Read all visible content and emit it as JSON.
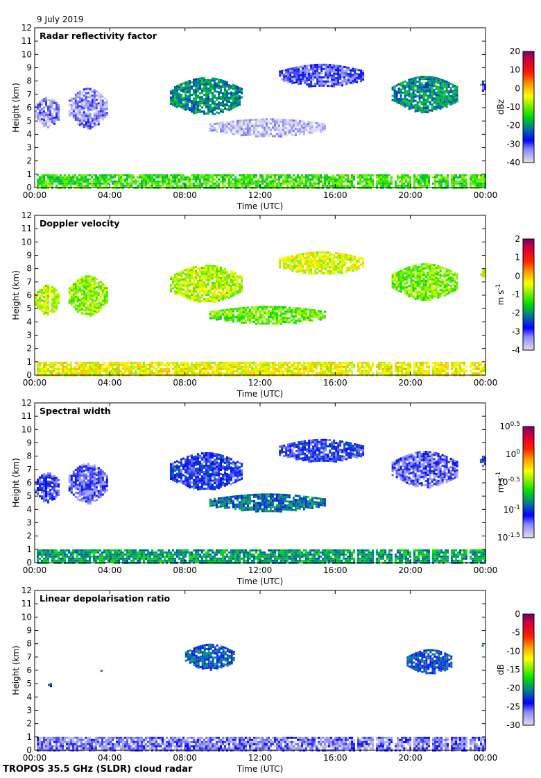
{
  "header": {
    "date": "9 July 2019"
  },
  "footer": {
    "instrument": "TROPOS 35.5 GHz (SLDR) cloud radar"
  },
  "chart_data": [
    {
      "type": "heatmap",
      "title": "Radar reflectivity factor",
      "xlabel": "Time (UTC)",
      "ylabel": "Height (km)",
      "xticks": [
        "00:00",
        "04:00",
        "08:00",
        "12:00",
        "16:00",
        "20:00",
        "00:00"
      ],
      "xlim_hours": [
        0,
        24
      ],
      "ylim": [
        0,
        12
      ],
      "yticks": [
        0,
        1,
        2,
        3,
        4,
        5,
        6,
        7,
        8,
        9,
        10,
        11,
        12
      ],
      "colorbar": {
        "label": "dBz",
        "ticks": [
          "20",
          "10",
          "0",
          "-10",
          "-20",
          "-30",
          "-40"
        ],
        "range": [
          -40,
          20
        ]
      },
      "features": [
        {
          "name": "boundary-layer echo",
          "t_start": 0,
          "t_end": 24,
          "h_bottom": 0,
          "h_top": 1.0,
          "level": 0.45
        },
        {
          "name": "mid-level cloud early",
          "t_start": 0,
          "t_end": 1.3,
          "h_bottom": 4.6,
          "h_top": 6.8,
          "level": 0.1
        },
        {
          "name": "scattered cloud",
          "t_start": 1.8,
          "t_end": 3.8,
          "h_bottom": 4.5,
          "h_top": 7.5,
          "level": 0.1
        },
        {
          "name": "ice cloud morning",
          "t_start": 7.2,
          "t_end": 11.0,
          "h_bottom": 5.5,
          "h_top": 8.3,
          "level": 0.33
        },
        {
          "name": "weak layer",
          "t_start": 9.3,
          "t_end": 15.5,
          "h_bottom": 3.9,
          "h_top": 5.2,
          "level": 0.05
        },
        {
          "name": "upper cloud afternoon",
          "t_start": 13.0,
          "t_end": 17.5,
          "h_bottom": 7.6,
          "h_top": 9.3,
          "level": 0.16
        },
        {
          "name": "ice cloud evening",
          "t_start": 19.0,
          "t_end": 22.5,
          "h_bottom": 5.7,
          "h_top": 8.4,
          "level": 0.33
        },
        {
          "name": "edge cloud",
          "t_start": 23.7,
          "t_end": 24,
          "h_bottom": 7.3,
          "h_top": 8.0,
          "level": 0.2
        }
      ]
    },
    {
      "type": "heatmap",
      "title": "Doppler velocity",
      "xlabel": "Time (UTC)",
      "ylabel": "Height (km)",
      "xticks": [
        "00:00",
        "04:00",
        "08:00",
        "12:00",
        "16:00",
        "20:00",
        "00:00"
      ],
      "xlim_hours": [
        0,
        24
      ],
      "ylim": [
        0,
        12
      ],
      "yticks": [
        0,
        1,
        2,
        3,
        4,
        5,
        6,
        7,
        8,
        9,
        10,
        11,
        12
      ],
      "colorbar": {
        "label": "m s-1",
        "ticks": [
          "2",
          "1",
          "0",
          "-1",
          "-2",
          "-3",
          "-4"
        ],
        "range": [
          -4,
          2
        ]
      },
      "features": [
        {
          "name": "boundary-layer echo",
          "t_start": 0,
          "t_end": 24,
          "h_bottom": 0,
          "h_top": 1.0,
          "level": 0.6
        },
        {
          "name": "mid-level cloud early",
          "t_start": 0,
          "t_end": 1.3,
          "h_bottom": 4.6,
          "h_top": 6.8,
          "level": 0.55
        },
        {
          "name": "scattered cloud",
          "t_start": 1.8,
          "t_end": 3.8,
          "h_bottom": 4.5,
          "h_top": 7.5,
          "level": 0.52
        },
        {
          "name": "ice cloud morning",
          "t_start": 7.2,
          "t_end": 11.0,
          "h_bottom": 5.5,
          "h_top": 8.3,
          "level": 0.55
        },
        {
          "name": "weak layer",
          "t_start": 9.3,
          "t_end": 15.5,
          "h_bottom": 3.9,
          "h_top": 5.2,
          "level": 0.48
        },
        {
          "name": "upper cloud afternoon",
          "t_start": 13.0,
          "t_end": 17.5,
          "h_bottom": 7.6,
          "h_top": 9.3,
          "level": 0.58
        },
        {
          "name": "ice cloud evening",
          "t_start": 19.0,
          "t_end": 22.5,
          "h_bottom": 5.7,
          "h_top": 8.4,
          "level": 0.5
        },
        {
          "name": "edge cloud",
          "t_start": 23.7,
          "t_end": 24,
          "h_bottom": 7.3,
          "h_top": 8.0,
          "level": 0.58
        }
      ]
    },
    {
      "type": "heatmap",
      "title": "Spectral width",
      "xlabel": "Time (UTC)",
      "ylabel": "Height (km)",
      "xticks": [
        "00:00",
        "04:00",
        "08:00",
        "12:00",
        "16:00",
        "20:00",
        "00:00"
      ],
      "xlim_hours": [
        0,
        24
      ],
      "ylim": [
        0,
        12
      ],
      "yticks": [
        0,
        1,
        2,
        3,
        4,
        5,
        6,
        7,
        8,
        9,
        10,
        11,
        12
      ],
      "colorbar": {
        "label": "m s-1",
        "ticks": [
          "10^0.5",
          "10^0",
          "10^-0.5",
          "10^-1",
          "10^-1.5"
        ],
        "range_log10": [
          -1.5,
          0.5
        ]
      },
      "features": [
        {
          "name": "boundary-layer echo",
          "t_start": 0,
          "t_end": 24,
          "h_bottom": 0,
          "h_top": 1.0,
          "level": 0.35
        },
        {
          "name": "mid-level cloud early",
          "t_start": 0,
          "t_end": 1.3,
          "h_bottom": 4.6,
          "h_top": 6.8,
          "level": 0.18
        },
        {
          "name": "scattered cloud",
          "t_start": 1.8,
          "t_end": 3.8,
          "h_bottom": 4.5,
          "h_top": 7.5,
          "level": 0.15
        },
        {
          "name": "ice cloud morning",
          "t_start": 7.2,
          "t_end": 11.0,
          "h_bottom": 5.5,
          "h_top": 8.3,
          "level": 0.2
        },
        {
          "name": "weak layer",
          "t_start": 9.3,
          "t_end": 15.5,
          "h_bottom": 3.9,
          "h_top": 5.2,
          "level": 0.3
        },
        {
          "name": "upper cloud afternoon",
          "t_start": 13.0,
          "t_end": 17.5,
          "h_bottom": 7.6,
          "h_top": 9.3,
          "level": 0.2
        },
        {
          "name": "ice cloud evening",
          "t_start": 19.0,
          "t_end": 22.5,
          "h_bottom": 5.7,
          "h_top": 8.4,
          "level": 0.15
        },
        {
          "name": "edge cloud",
          "t_start": 23.7,
          "t_end": 24,
          "h_bottom": 7.3,
          "h_top": 8.0,
          "level": 0.2
        }
      ]
    },
    {
      "type": "heatmap",
      "title": "Linear depolarisation ratio",
      "xlabel": "Time (UTC)",
      "ylabel": "Height (km)",
      "xticks": [
        "00:00",
        "04:00",
        "08:00",
        "12:00",
        "16:00",
        "20:00",
        "00:00"
      ],
      "xlim_hours": [
        0,
        24
      ],
      "ylim": [
        0,
        12
      ],
      "yticks": [
        0,
        1,
        2,
        3,
        4,
        5,
        6,
        7,
        8,
        9,
        10,
        11,
        12
      ],
      "colorbar": {
        "label": "dB",
        "ticks": [
          "0",
          "-5",
          "-10",
          "-15",
          "-20",
          "-25",
          "-30"
        ],
        "range": [
          -30,
          0
        ]
      },
      "features": [
        {
          "name": "boundary-layer echo",
          "t_start": 0,
          "t_end": 24,
          "h_bottom": 0,
          "h_top": 1.0,
          "level": 0.12
        },
        {
          "name": "small patch",
          "t_start": 0.7,
          "t_end": 0.9,
          "h_bottom": 4.85,
          "h_top": 5.05,
          "level": 0.25
        },
        {
          "name": "small patch 2",
          "t_start": 3.5,
          "t_end": 3.6,
          "h_bottom": 5.9,
          "h_top": 6.1,
          "level": 0.25
        },
        {
          "name": "ice cloud morning",
          "t_start": 8.0,
          "t_end": 10.6,
          "h_bottom": 6.1,
          "h_top": 8.0,
          "level": 0.27
        },
        {
          "name": "ice cloud evening",
          "t_start": 19.8,
          "t_end": 22.2,
          "h_bottom": 5.8,
          "h_top": 7.6,
          "level": 0.25
        },
        {
          "name": "edge cloud",
          "t_start": 23.8,
          "t_end": 24,
          "h_bottom": 7.8,
          "h_top": 8.0,
          "level": 0.35
        }
      ]
    }
  ]
}
